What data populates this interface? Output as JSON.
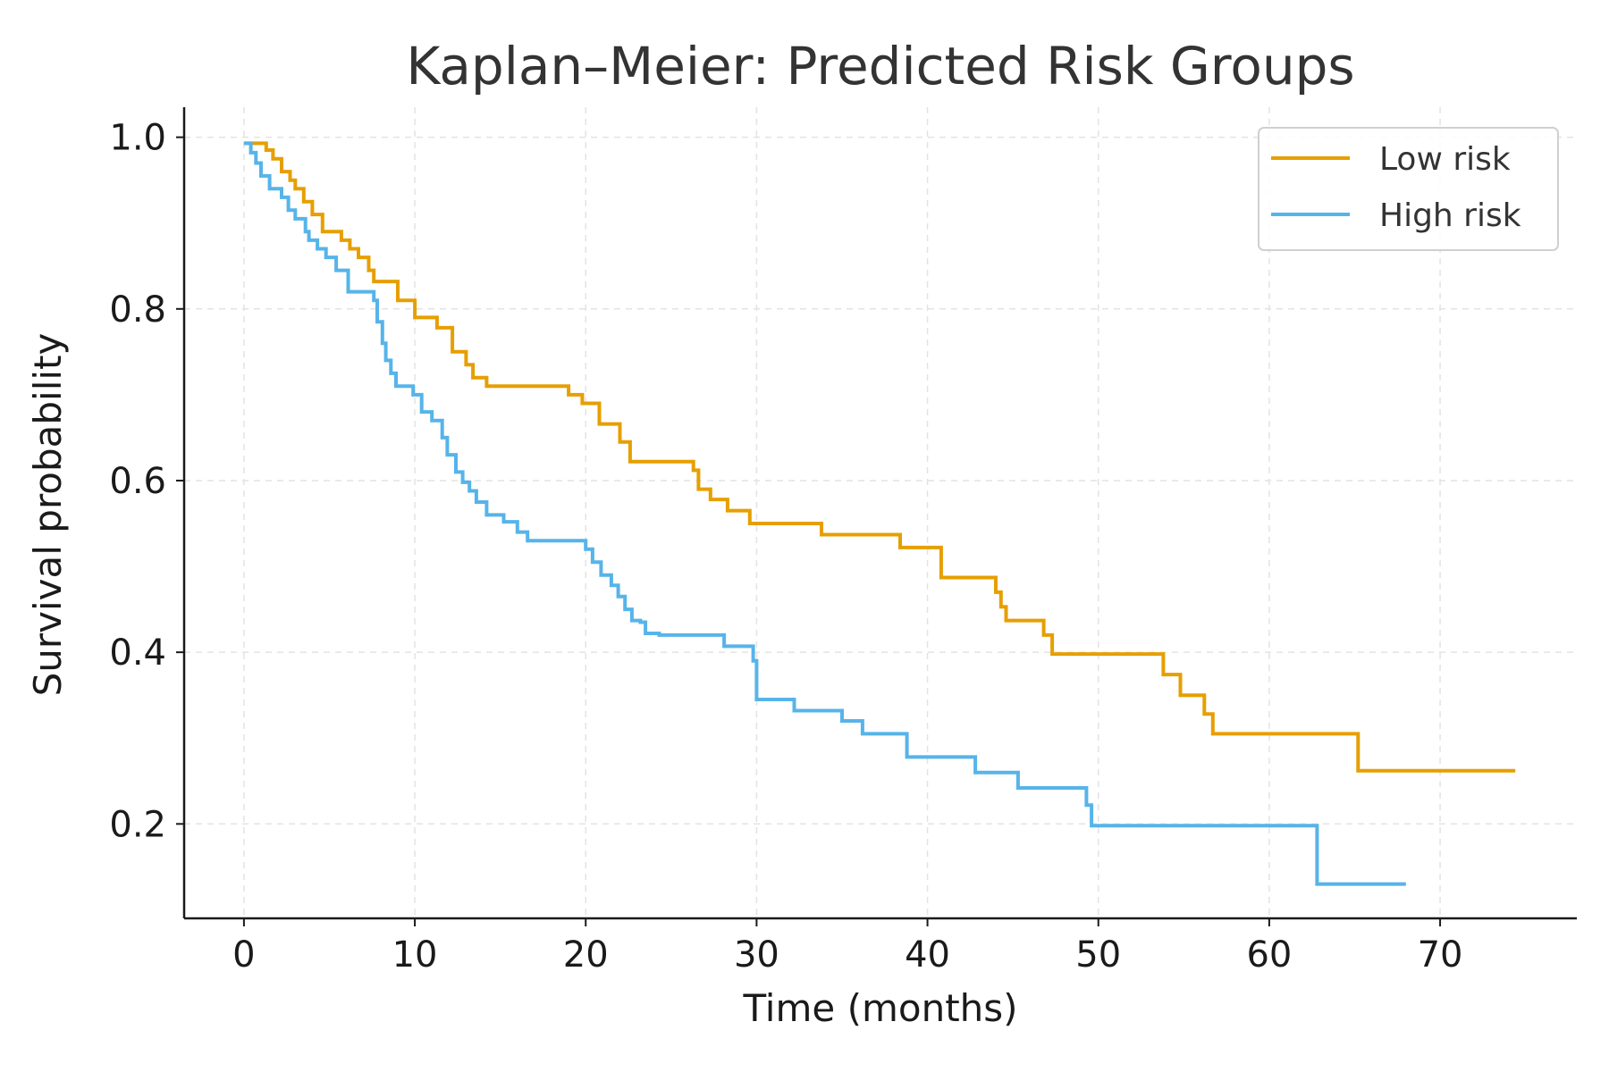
{
  "chart_data": {
    "type": "line",
    "title": "Kaplan–Meier: Predicted Risk Groups",
    "xlabel": "Time (months)",
    "ylabel": "Survival probability",
    "xlim": [
      -3.5,
      78
    ],
    "ylim": [
      0.09,
      1.035
    ],
    "x_ticks": [
      0,
      10,
      20,
      30,
      40,
      50,
      60,
      70
    ],
    "x_tick_labels": [
      "0",
      "10",
      "20",
      "30",
      "40",
      "50",
      "60",
      "70"
    ],
    "y_ticks": [
      0.2,
      0.4,
      0.6,
      0.8,
      1.0
    ],
    "y_tick_labels": [
      "0.2",
      "0.4",
      "0.6",
      "0.8",
      "1.0"
    ],
    "grid": true,
    "legend_position": "top-right",
    "step": "post",
    "series": [
      {
        "name": "Low risk",
        "color": "#E69F00",
        "x": [
          0,
          1.3,
          1.7,
          2.2,
          2.7,
          3.0,
          3.5,
          4.0,
          4.6,
          5.7,
          6.2,
          6.7,
          7.3,
          7.6,
          9.0,
          10.0,
          11.3,
          12.2,
          13.0,
          13.4,
          14.2,
          19.0,
          19.8,
          20.8,
          22.0,
          22.6,
          26.3,
          26.6,
          27.3,
          28.3,
          29.6,
          33.8,
          38.4,
          40.8,
          44.0,
          44.3,
          44.6,
          46.8,
          47.3,
          53.8,
          54.8,
          56.2,
          56.7,
          65.2,
          74.4
        ],
        "y": [
          0.993,
          0.985,
          0.975,
          0.96,
          0.95,
          0.94,
          0.925,
          0.91,
          0.89,
          0.88,
          0.87,
          0.86,
          0.845,
          0.832,
          0.81,
          0.79,
          0.778,
          0.75,
          0.735,
          0.72,
          0.71,
          0.7,
          0.69,
          0.666,
          0.645,
          0.622,
          0.612,
          0.59,
          0.578,
          0.565,
          0.55,
          0.537,
          0.522,
          0.487,
          0.47,
          0.453,
          0.437,
          0.42,
          0.398,
          0.374,
          0.35,
          0.328,
          0.305,
          0.262,
          0.262
        ]
      },
      {
        "name": "High risk",
        "color": "#56B4E9",
        "x": [
          0,
          0.4,
          0.7,
          1.0,
          1.5,
          2.2,
          2.6,
          3.0,
          3.6,
          3.8,
          4.3,
          4.8,
          5.4,
          6.1,
          7.6,
          7.8,
          8.1,
          8.3,
          8.6,
          8.9,
          9.9,
          10.4,
          11.0,
          11.6,
          11.9,
          12.4,
          12.8,
          13.2,
          13.6,
          14.2,
          15.2,
          16.0,
          16.6,
          20.0,
          20.4,
          20.9,
          21.5,
          21.9,
          22.3,
          22.7,
          23.2,
          23.5,
          24.3,
          28.1,
          29.8,
          30.0,
          32.2,
          35.0,
          36.2,
          38.8,
          42.8,
          45.3,
          49.3,
          49.6,
          62.8,
          68.0
        ],
        "y": [
          0.993,
          0.982,
          0.97,
          0.955,
          0.94,
          0.93,
          0.915,
          0.905,
          0.89,
          0.88,
          0.87,
          0.86,
          0.845,
          0.82,
          0.81,
          0.785,
          0.76,
          0.74,
          0.725,
          0.71,
          0.7,
          0.68,
          0.67,
          0.65,
          0.63,
          0.61,
          0.598,
          0.588,
          0.575,
          0.56,
          0.552,
          0.54,
          0.53,
          0.52,
          0.505,
          0.49,
          0.478,
          0.465,
          0.45,
          0.437,
          0.435,
          0.422,
          0.42,
          0.407,
          0.39,
          0.345,
          0.332,
          0.32,
          0.305,
          0.278,
          0.26,
          0.242,
          0.222,
          0.198,
          0.13,
          0.13
        ]
      }
    ]
  }
}
